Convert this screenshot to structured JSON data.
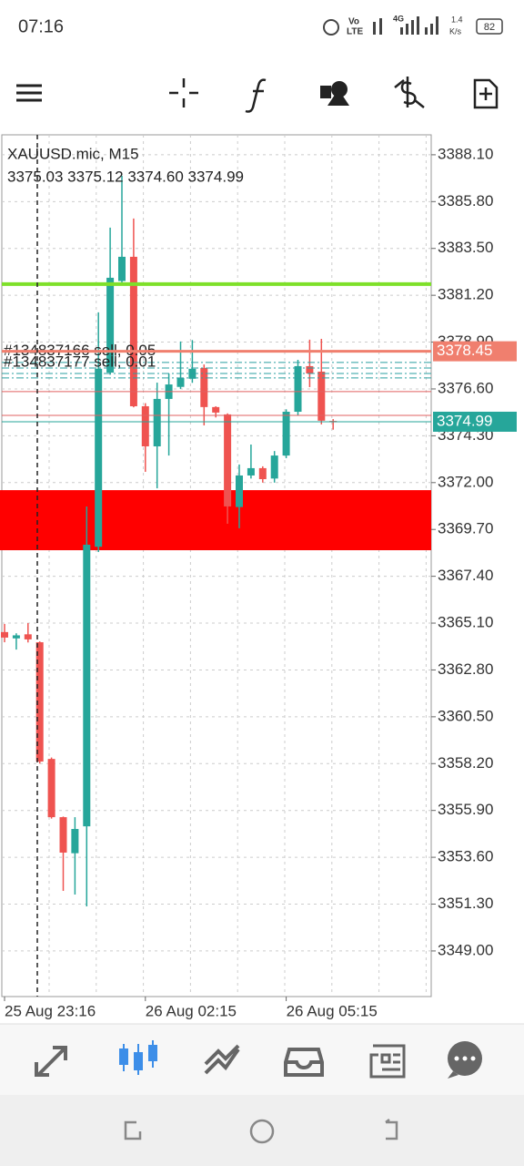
{
  "status_bar": {
    "time": "07:16",
    "volte": [
      "Vo",
      "LTE"
    ],
    "network": "4G",
    "speed": [
      "1.4",
      "K/s"
    ],
    "battery": "82"
  },
  "chart_data": {
    "type": "candlestick",
    "title": "XAUUSD.mic, M15",
    "subtitle": "3375.03 3375.12 3374.60 3374.99",
    "open": [
      3364.66,
      3364.35,
      3364.55,
      3364.16,
      3358.43,
      3355.57,
      3353.8,
      3355.12,
      3368.85,
      3377.4,
      3381.9,
      3383.09,
      3375.75,
      3373.78,
      3376.11,
      3376.7,
      3377.1,
      3377.63,
      3375.71,
      3375.35,
      3370.8,
      3372.35,
      3372.71,
      3372.2,
      3373.33,
      3375.48,
      3377.72,
      3377.45,
      3375.03
    ],
    "high": [
      3365.06,
      3364.6,
      3365.1,
      3364.2,
      3358.5,
      3355.6,
      3355.57,
      3370.83,
      3380.36,
      3384.52,
      3387.07,
      3384.97,
      3375.9,
      3376.91,
      3377.36,
      3378.93,
      3379.0,
      3377.8,
      3375.75,
      3375.4,
      3372.89,
      3373.87,
      3372.8,
      3373.55,
      3375.6,
      3378.03,
      3379.02,
      3379.06,
      3375.12
    ],
    "low": [
      3364.16,
      3363.8,
      3364.15,
      3358.2,
      3355.5,
      3351.95,
      3351.77,
      3351.19,
      3368.59,
      3377.3,
      3381.8,
      3375.7,
      3372.53,
      3371.72,
      3373.33,
      3376.6,
      3376.9,
      3374.81,
      3375.2,
      3369.98,
      3369.76,
      3372.2,
      3372.0,
      3372.0,
      3373.2,
      3375.3,
      3376.69,
      3374.86,
      3374.6
    ],
    "close": [
      3364.39,
      3364.5,
      3364.3,
      3358.3,
      3355.57,
      3353.83,
      3354.99,
      3368.95,
      3377.59,
      3382.06,
      3383.09,
      3375.75,
      3373.78,
      3376.11,
      3376.82,
      3377.14,
      3377.59,
      3375.71,
      3375.44,
      3370.83,
      3372.35,
      3372.71,
      3372.17,
      3373.33,
      3375.48,
      3377.72,
      3377.36,
      3375.04,
      3374.99
    ],
    "up_color": "#26a69a",
    "down_color": "#ef5350",
    "ylim": [
      3346.76,
      3389.08
    ],
    "yticks": [
      {
        "value": 3388.1,
        "label": "3388.10"
      },
      {
        "value": 3385.8,
        "label": "3385.80"
      },
      {
        "value": 3383.5,
        "label": "3383.50"
      },
      {
        "value": 3381.2,
        "label": "3381.20"
      },
      {
        "value": 3378.9,
        "label": "3378.90"
      },
      {
        "value": 3376.6,
        "label": "3376.60"
      },
      {
        "value": 3374.3,
        "label": "3374.30"
      },
      {
        "value": 3372.0,
        "label": "3372.00"
      },
      {
        "value": 3369.7,
        "label": "3369.70"
      },
      {
        "value": 3367.4,
        "label": "3367.40"
      },
      {
        "value": 3365.1,
        "label": "3365.10"
      },
      {
        "value": 3362.8,
        "label": "3362.80"
      },
      {
        "value": 3360.5,
        "label": "3360.50"
      },
      {
        "value": 3358.2,
        "label": "3358.20"
      },
      {
        "value": 3355.9,
        "label": "3355.90"
      },
      {
        "value": 3353.6,
        "label": "3353.60"
      },
      {
        "value": 3351.3,
        "label": "3351.30"
      },
      {
        "value": 3349.0,
        "label": "3349.00"
      }
    ],
    "xticks": [
      {
        "value": 0,
        "label": "25 Aug 23:16"
      },
      {
        "value": 12,
        "label": "26 Aug 02:15"
      },
      {
        "value": 24,
        "label": "26 Aug 05:15"
      }
    ],
    "grid": true,
    "zones": [
      {
        "from": 3368.68,
        "to": 3371.63,
        "color": "#ff0000"
      }
    ],
    "levels": [
      {
        "value": 3381.75,
        "color": "#7ee02a",
        "width": 4,
        "tag": false
      },
      {
        "value": 3378.45,
        "color": "#f07f6e",
        "width": 3,
        "tag": true
      },
      {
        "value": 3376.47,
        "color": "#e06060",
        "width": 1,
        "tag": false
      },
      {
        "value": 3375.3,
        "color": "#e06060",
        "width": 1,
        "tag": false
      },
      {
        "value": 3374.99,
        "color": "#26a69a",
        "width": 1,
        "tag": true
      }
    ],
    "orders": [
      {
        "value": 3378.45,
        "label": "#134837166 sell, 0.05"
      },
      {
        "value": 3377.9,
        "label": "#134837177 sell, 0.01"
      },
      {
        "value": 3377.63
      },
      {
        "value": 3377.36
      },
      {
        "value": 3377.14
      }
    ]
  }
}
